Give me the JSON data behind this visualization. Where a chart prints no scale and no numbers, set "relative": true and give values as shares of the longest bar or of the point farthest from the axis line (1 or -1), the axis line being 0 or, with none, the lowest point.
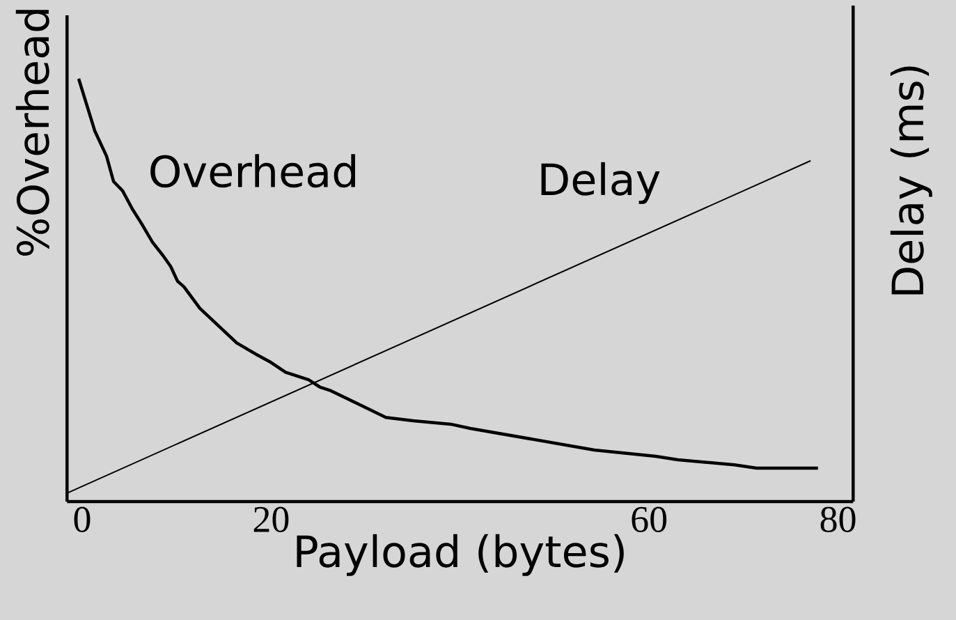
{
  "chart_data": {
    "type": "line",
    "relative": true,
    "xlabel": "Payload (bytes)",
    "ylabel": "%Overhead",
    "y2label": "Delay (ms)",
    "xlim": [
      -1.6,
      81.6
    ],
    "xticks": [
      0,
      20,
      60,
      80
    ],
    "series": [
      {
        "name": "Overhead",
        "color": "#000000",
        "x": [
          -0.37,
          1.33,
          2.58,
          3.32,
          4.28,
          5.31,
          6.27,
          7.45,
          8.55,
          9.37,
          10.1,
          10.77,
          12.46,
          16.37,
          18.36,
          19.99,
          21.53,
          23.97,
          25.15,
          26.33,
          32.15,
          35.03,
          39.01,
          41.08,
          54.2,
          60.7,
          63.05,
          69.03,
          71.39,
          77.88
        ],
        "values": [
          1.0,
          0.877,
          0.817,
          0.757,
          0.735,
          0.692,
          0.658,
          0.613,
          0.582,
          0.556,
          0.521,
          0.508,
          0.457,
          0.375,
          0.349,
          0.329,
          0.306,
          0.288,
          0.271,
          0.262,
          0.199,
          0.191,
          0.183,
          0.173,
          0.122,
          0.107,
          0.099,
          0.087,
          0.079,
          0.079
        ]
      },
      {
        "name": "Delay",
        "color": "#000000",
        "axis": "y2",
        "x": [
          -1.6,
          77.1
        ],
        "values": [
          0.02,
          0.806
        ]
      }
    ]
  }
}
